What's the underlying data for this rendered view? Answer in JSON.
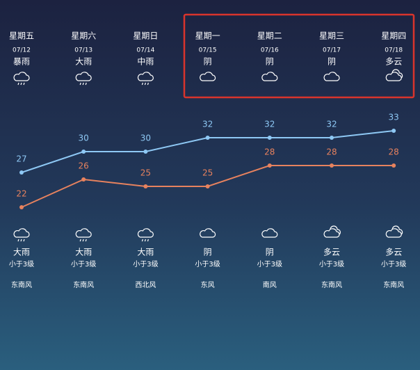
{
  "chart_data": {
    "type": "line",
    "categories": [
      "星期五",
      "星期六",
      "星期日",
      "星期一",
      "星期二",
      "星期三",
      "星期四"
    ],
    "dates": [
      "07/12",
      "07/13",
      "07/14",
      "07/15",
      "07/16",
      "07/17",
      "07/18"
    ],
    "day_weather": [
      "暴雨",
      "大雨",
      "中雨",
      "阴",
      "阴",
      "阴",
      "多云"
    ],
    "night_weather": [
      "大雨",
      "大雨",
      "大雨",
      "阴",
      "阴",
      "多云",
      "多云"
    ],
    "wind_level": [
      "小于3级",
      "小于3级",
      "小于3级",
      "小于3级",
      "小于3级",
      "小于3级",
      "小于3级"
    ],
    "wind_direction": [
      "东南风",
      "东南风",
      "西北风",
      "东风",
      "南风",
      "东南风",
      "东南风"
    ],
    "series": [
      {
        "color": "#8ec8f4",
        "values": [
          27,
          30,
          30,
          32,
          32,
          32,
          33
        ]
      },
      {
        "color": "#e7825e",
        "values": [
          22,
          26,
          25,
          25,
          28,
          28,
          28
        ]
      }
    ]
  }
}
